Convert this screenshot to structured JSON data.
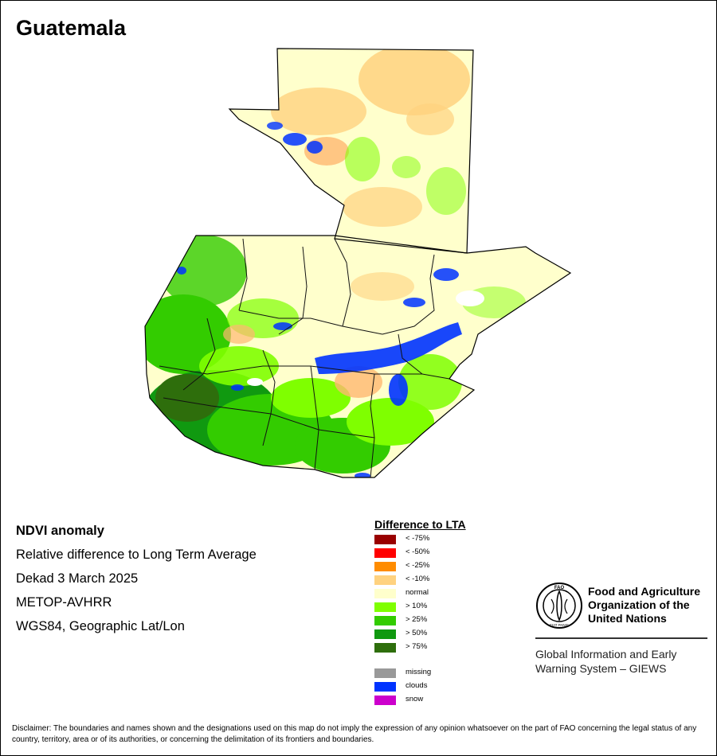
{
  "title": "Guatemala",
  "info": {
    "product": "NDVI anomaly",
    "description": "Relative difference to Long Term Average",
    "period": "Dekad 3 March 2025",
    "sensor": "METOP-AVHRR",
    "projection": "WGS84, Geographic Lat/Lon"
  },
  "legend": {
    "title": "Difference to LTA",
    "classes": [
      {
        "label": "< -75%",
        "color": "#990000"
      },
      {
        "label": "< -50%",
        "color": "#ff0000"
      },
      {
        "label": "< -25%",
        "color": "#ff8c00"
      },
      {
        "label": "< -10%",
        "color": "#ffd27f"
      },
      {
        "label": "normal",
        "color": "#ffffcc"
      },
      {
        "label": "> 10%",
        "color": "#7fff00"
      },
      {
        "label": "> 25%",
        "color": "#33cc00"
      },
      {
        "label": "> 50%",
        "color": "#109910"
      },
      {
        "label": "> 75%",
        "color": "#2e6e0c"
      }
    ],
    "other": [
      {
        "label": "missing",
        "color": "#999999"
      },
      {
        "label": "clouds",
        "color": "#0033ff"
      },
      {
        "label": "snow",
        "color": "#cc00cc"
      }
    ]
  },
  "org": {
    "name_line1": "Food and Agriculture",
    "name_line2": "Organization of the",
    "name_line3": "United Nations",
    "logo_text": "FAO",
    "logo_motto": "FIAT PANIS",
    "system_line1": "Global Information and Early",
    "system_line2": "Warning System – GIEWS"
  },
  "disclaimer": "Disclaimer: The boundaries and names shown and the designations used on this map do not imply the expression of any opinion whatsoever on the part of FAO concerning the legal status of any country, territory, area or of its authorities, or concerning the delimitation of its frontiers and boundaries."
}
